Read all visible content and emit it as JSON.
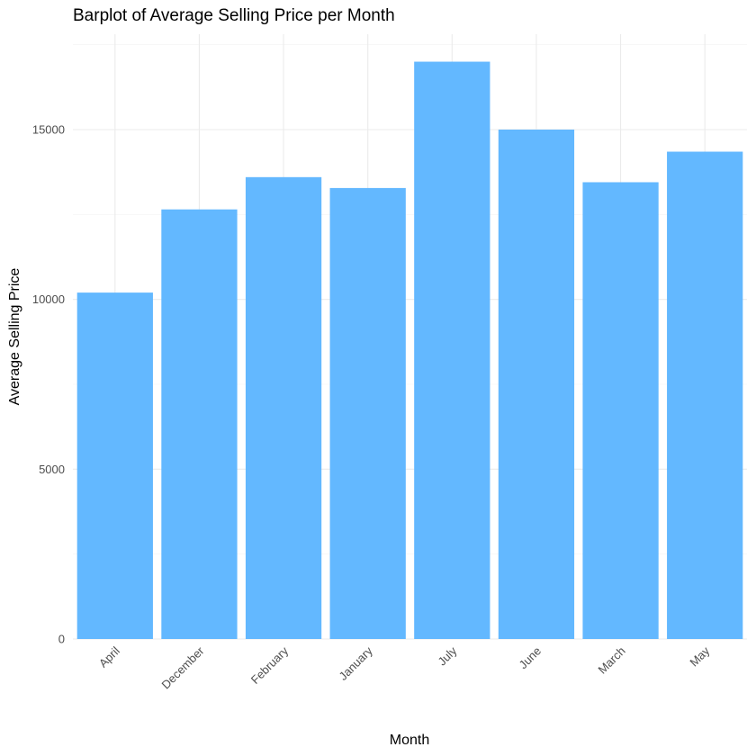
{
  "chart_data": {
    "type": "bar",
    "title": "Barplot of Average Selling Price per Month",
    "xlabel": "Month",
    "ylabel": "Average Selling Price",
    "categories": [
      "April",
      "December",
      "February",
      "January",
      "July",
      "June",
      "March",
      "May"
    ],
    "values": [
      10200,
      12650,
      13600,
      13280,
      17000,
      15000,
      13450,
      14350
    ],
    "ylim": [
      0,
      17800
    ],
    "yticks": [
      0,
      5000,
      10000,
      15000
    ],
    "ytick_labels": [
      "0",
      "5000",
      "10000",
      "15000"
    ],
    "bar_color": "#63b8ff",
    "grid": true,
    "legend": "none"
  }
}
